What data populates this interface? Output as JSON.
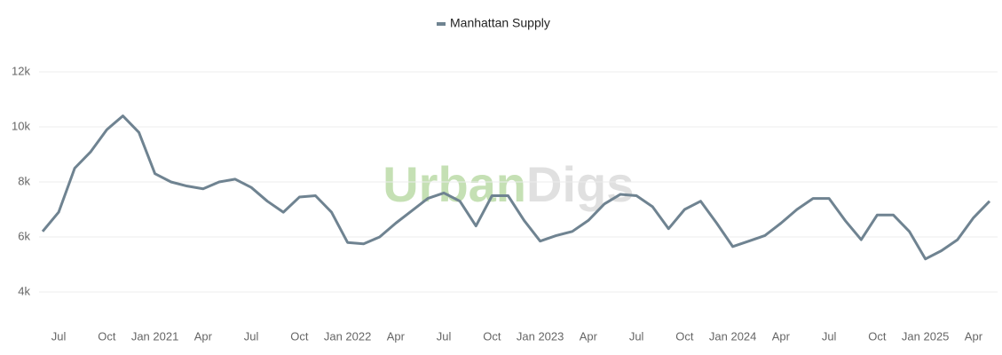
{
  "chart_data": {
    "type": "line",
    "watermark": {
      "first": "Urban",
      "second": "Digs"
    },
    "x": [
      "2020-06",
      "2020-07",
      "2020-08",
      "2020-09",
      "2020-10",
      "2020-11",
      "2020-12",
      "2021-01",
      "2021-02",
      "2021-03",
      "2021-04",
      "2021-05",
      "2021-06",
      "2021-07",
      "2021-08",
      "2021-09",
      "2021-10",
      "2021-11",
      "2021-12",
      "2022-01",
      "2022-02",
      "2022-03",
      "2022-04",
      "2022-05",
      "2022-06",
      "2022-07",
      "2022-08",
      "2022-09",
      "2022-10",
      "2022-11",
      "2022-12",
      "2023-01",
      "2023-02",
      "2023-03",
      "2023-04",
      "2023-05",
      "2023-06",
      "2023-07",
      "2023-08",
      "2023-09",
      "2023-10",
      "2023-11",
      "2023-12",
      "2024-01",
      "2024-02",
      "2024-03",
      "2024-04",
      "2024-05",
      "2024-06",
      "2024-07",
      "2024-08",
      "2024-09",
      "2024-10",
      "2024-11",
      "2024-12",
      "2025-01",
      "2025-02",
      "2025-03",
      "2025-04",
      "2025-05"
    ],
    "series": [
      {
        "name": "Manhattan Supply",
        "color": "#6f8391",
        "values": [
          6200,
          6900,
          8500,
          9100,
          9900,
          10400,
          9800,
          8300,
          8000,
          7850,
          7750,
          8000,
          8100,
          7800,
          7300,
          6900,
          7450,
          7500,
          6900,
          5800,
          5750,
          6000,
          6500,
          6950,
          7400,
          7600,
          7300,
          6400,
          7500,
          7500,
          6600,
          5850,
          6050,
          6200,
          6600,
          7200,
          7550,
          7500,
          7100,
          6300,
          7000,
          7300,
          6500,
          5650,
          5850,
          6050,
          6500,
          7000,
          7400,
          7400,
          6600,
          5900,
          6800,
          6800,
          6200,
          5200,
          5500,
          5900,
          6700,
          7300
        ]
      }
    ],
    "xlim": [
      "2020-06",
      "2025-05"
    ],
    "xticks": [
      {
        "value": "2020-07",
        "label": "Jul"
      },
      {
        "value": "2020-10",
        "label": "Oct"
      },
      {
        "value": "2021-01",
        "label": "Jan 2021"
      },
      {
        "value": "2021-04",
        "label": "Apr"
      },
      {
        "value": "2021-07",
        "label": "Jul"
      },
      {
        "value": "2021-10",
        "label": "Oct"
      },
      {
        "value": "2022-01",
        "label": "Jan 2022"
      },
      {
        "value": "2022-04",
        "label": "Apr"
      },
      {
        "value": "2022-07",
        "label": "Jul"
      },
      {
        "value": "2022-10",
        "label": "Oct"
      },
      {
        "value": "2023-01",
        "label": "Jan 2023"
      },
      {
        "value": "2023-04",
        "label": "Apr"
      },
      {
        "value": "2023-07",
        "label": "Jul"
      },
      {
        "value": "2023-10",
        "label": "Oct"
      },
      {
        "value": "2024-01",
        "label": "Jan 2024"
      },
      {
        "value": "2024-04",
        "label": "Apr"
      },
      {
        "value": "2024-07",
        "label": "Jul"
      },
      {
        "value": "2024-10",
        "label": "Oct"
      },
      {
        "value": "2025-01",
        "label": "Jan 2025"
      },
      {
        "value": "2025-04",
        "label": "Apr"
      }
    ],
    "ylim": [
      3000,
      13000
    ],
    "yticks": [
      {
        "value": 4000,
        "label": "4k"
      },
      {
        "value": 6000,
        "label": "6k"
      },
      {
        "value": 8000,
        "label": "8k"
      },
      {
        "value": 10000,
        "label": "10k"
      },
      {
        "value": 12000,
        "label": "12k"
      }
    ],
    "grid": true,
    "legend": "top"
  }
}
